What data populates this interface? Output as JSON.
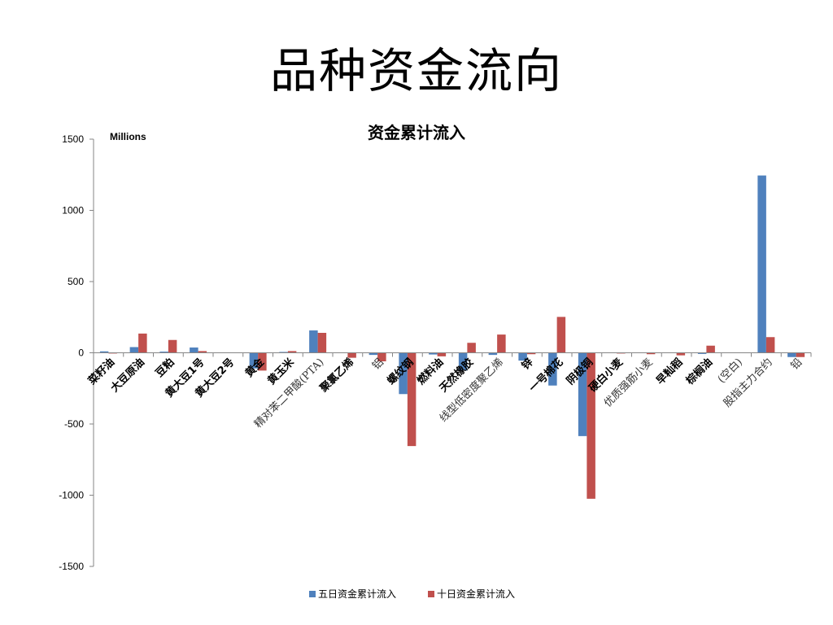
{
  "slide": {
    "title": "品种资金流向"
  },
  "chart_data": {
    "type": "bar",
    "title": "资金累计流入",
    "unit_label": "Millions",
    "ylim": [
      -1500,
      1500
    ],
    "yticks": [
      1500,
      1000,
      500,
      0,
      -500,
      -1000,
      -1500
    ],
    "grid": false,
    "legend_position": "bottom",
    "categories": [
      "菜籽油",
      "大豆原油",
      "豆粕",
      "黄大豆1号",
      "黄大豆2号",
      "黄金",
      "黄玉米",
      "精对苯二甲酸(PTA)",
      "聚氯乙烯",
      "铝",
      "螺纹钢",
      "燃料油",
      "天然橡胶",
      "线型低密度聚乙烯",
      "锌",
      "一号棉花",
      "阴极铜",
      "硬白小麦",
      "优质强筋小麦",
      "早籼稻",
      "棕榈油",
      "(空白)",
      "股指主力合约",
      "铅"
    ],
    "series": [
      {
        "name": "五日资金累计流入",
        "color": "#4F81BD",
        "values": [
          10,
          40,
          8,
          37,
          0,
          -110,
          6,
          157,
          0,
          -15,
          -290,
          -12,
          -125,
          -15,
          -55,
          -230,
          -585,
          0,
          0,
          0,
          -8,
          0,
          1245,
          -30
        ]
      },
      {
        "name": "十日资金累计流入",
        "color": "#C0504D",
        "values": [
          -5,
          135,
          90,
          12,
          0,
          -125,
          12,
          140,
          -35,
          -60,
          -655,
          -25,
          70,
          128,
          -10,
          252,
          -1025,
          -5,
          -10,
          -18,
          50,
          0,
          110,
          -30
        ]
      }
    ]
  }
}
